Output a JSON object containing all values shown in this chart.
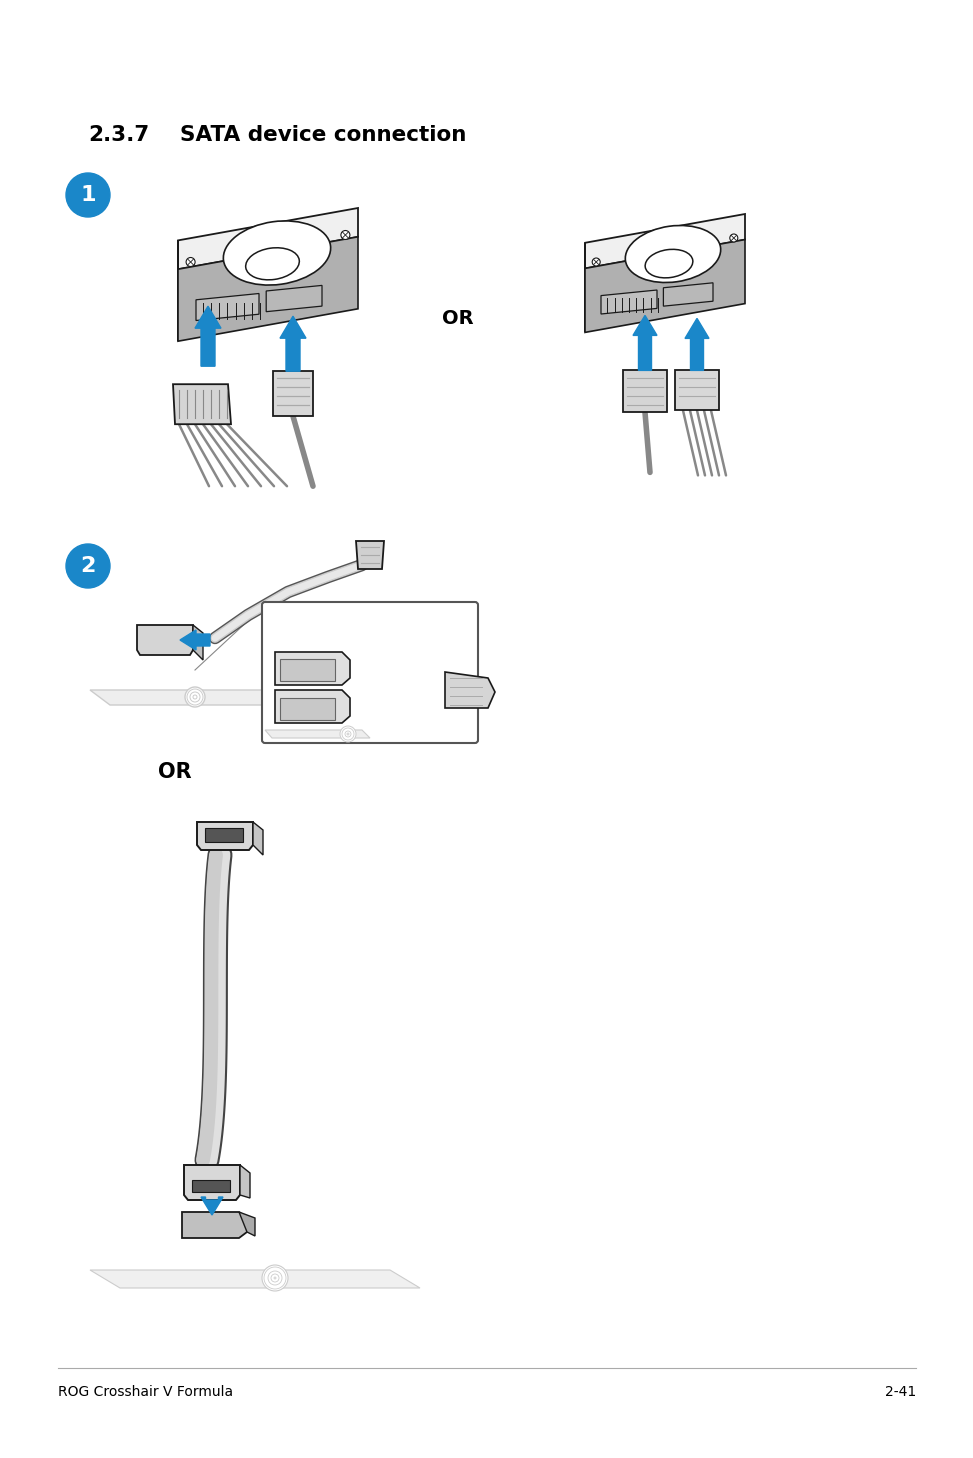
{
  "title_number": "2.3.7",
  "title_text": "SATA device connection",
  "title_fontsize": 15.5,
  "badge1_label": "1",
  "badge2_label": "2",
  "badge_color": "#1a87c9",
  "or_text1": "OR",
  "or_text2": "OR",
  "footer_left": "ROG Crosshair V Formula",
  "footer_right": "2-41",
  "footer_fontsize": 10,
  "background_color": "#ffffff",
  "arrow_color": "#1a87c9",
  "page_width": 9.54,
  "page_height": 14.38,
  "dpi": 100,
  "edge_color": "#1a1a1a",
  "light_gray": "#f0f0f0",
  "mid_gray": "#d8d8d8",
  "dark_gray": "#b0b0b0"
}
